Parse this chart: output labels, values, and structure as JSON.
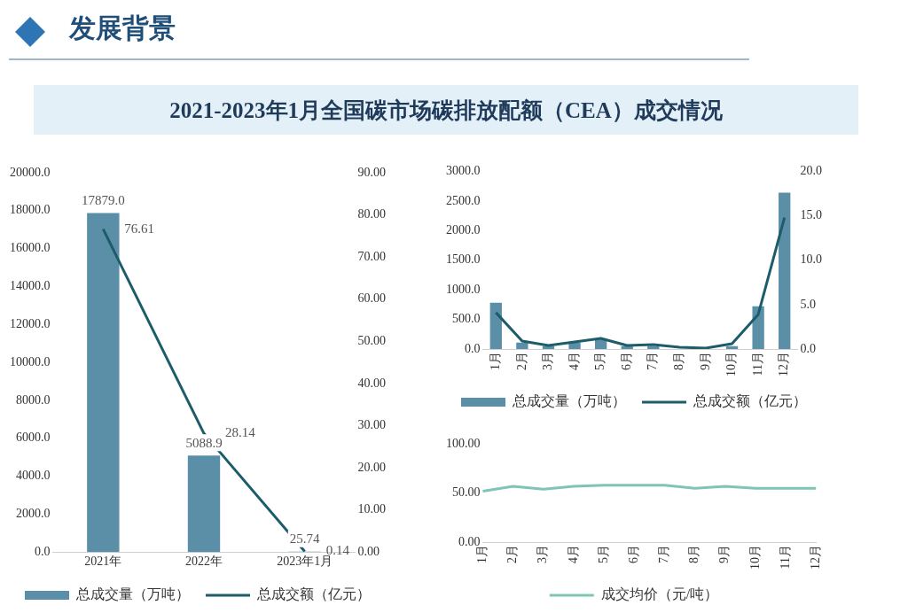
{
  "chart_data": [
    {
      "type": "bar",
      "title": "2021-2023年1月全国碳市场碳排放配额（CEA）成交情况",
      "annotations": [
        "发展背景"
      ],
      "categories": [
        "2021年",
        "2022年",
        "2023年1月"
      ],
      "series": [
        {
          "name": "总成交量（万吨）",
          "type": "bar",
          "color": "#5b8fa8",
          "values": [
            17879.0,
            5088.9,
            25.74
          ],
          "value_labels": [
            "17879.0",
            "5088.9",
            "25.74"
          ]
        },
        {
          "name": "总成交额（亿元）",
          "type": "line",
          "axis": "y2",
          "color": "#1d5c69",
          "values": [
            76.61,
            28.14,
            0.14
          ],
          "value_labels": [
            "76.61",
            "28.14",
            "0.14"
          ]
        }
      ],
      "ylim": [
        0,
        20000
      ],
      "yticks": [
        {
          "value": 0,
          "label": "0.0"
        },
        {
          "value": 2000,
          "label": "2000.0"
        },
        {
          "value": 4000,
          "label": "4000.0"
        },
        {
          "value": 6000,
          "label": "6000.0"
        },
        {
          "value": 8000,
          "label": "8000.0"
        },
        {
          "value": 10000,
          "label": "10000.0"
        },
        {
          "value": 12000,
          "label": "12000.0"
        },
        {
          "value": 14000,
          "label": "14000.0"
        },
        {
          "value": 16000,
          "label": "16000.0"
        },
        {
          "value": 18000,
          "label": "18000.0"
        },
        {
          "value": 20000,
          "label": "20000.0"
        }
      ],
      "y2lim": [
        0,
        90
      ],
      "y2ticks": [
        {
          "value": 0,
          "label": "0.00"
        },
        {
          "value": 10,
          "label": "10.00"
        },
        {
          "value": 20,
          "label": "20.00"
        },
        {
          "value": 30,
          "label": "30.00"
        },
        {
          "value": 40,
          "label": "40.00"
        },
        {
          "value": 50,
          "label": "50.00"
        },
        {
          "value": 60,
          "label": "60.00"
        },
        {
          "value": 70,
          "label": "70.00"
        },
        {
          "value": 80,
          "label": "80.00"
        },
        {
          "value": 90,
          "label": "90.00"
        }
      ],
      "grid": false,
      "legend": "bottom",
      "marker": "none"
    },
    {
      "type": "bar",
      "categories": [
        "1月",
        "2月",
        "3月",
        "4月",
        "5月",
        "6月",
        "7月",
        "8月",
        "9月",
        "10月",
        "11月",
        "12月"
      ],
      "series": [
        {
          "name": "总成交量（万吨）",
          "type": "bar",
          "color": "#5b8fa8",
          "values": [
            780,
            110,
            50,
            110,
            160,
            50,
            50,
            null,
            null,
            50,
            720,
            2640
          ]
        },
        {
          "name": "总成交额（亿元）",
          "type": "line",
          "axis": "y2",
          "color": "#1d5c69",
          "values": [
            4.1,
            0.9,
            0.4,
            0.8,
            1.2,
            0.4,
            0.5,
            0.2,
            0.1,
            0.6,
            3.9,
            14.8
          ]
        }
      ],
      "ylim": [
        0,
        3000
      ],
      "yticks": [
        {
          "value": 0,
          "label": "0.0"
        },
        {
          "value": 500,
          "label": "500.0"
        },
        {
          "value": 1000,
          "label": "1000.0"
        },
        {
          "value": 1500,
          "label": "1500.0"
        },
        {
          "value": 2000,
          "label": "2000.0"
        },
        {
          "value": 2500,
          "label": "2500.0"
        },
        {
          "value": 3000,
          "label": "3000.0"
        }
      ],
      "y2lim": [
        0,
        20
      ],
      "y2ticks": [
        {
          "value": 0,
          "label": "0.0"
        },
        {
          "value": 5,
          "label": "5.0"
        },
        {
          "value": 10,
          "label": "10.0"
        },
        {
          "value": 15,
          "label": "15.0"
        },
        {
          "value": 20,
          "label": "20.0"
        }
      ],
      "grid": false,
      "legend": "bottom",
      "marker": "none"
    },
    {
      "type": "line",
      "categories": [
        "1月",
        "2月",
        "3月",
        "4月",
        "5月",
        "6月",
        "7月",
        "8月",
        "9月",
        "10月",
        "11月",
        "12月"
      ],
      "series": [
        {
          "name": "成交均价（元/吨）",
          "color": "#7fc4b4",
          "values": [
            52,
            57,
            54,
            57,
            58,
            58,
            58,
            55,
            57,
            55,
            55,
            55
          ]
        }
      ],
      "ylim": [
        0,
        100
      ],
      "yticks": [
        {
          "value": 0,
          "label": "0.00"
        },
        {
          "value": 50,
          "label": "50.00"
        },
        {
          "value": 100,
          "label": "100.00"
        }
      ],
      "grid": false,
      "legend": "bottom",
      "marker": "none"
    }
  ]
}
